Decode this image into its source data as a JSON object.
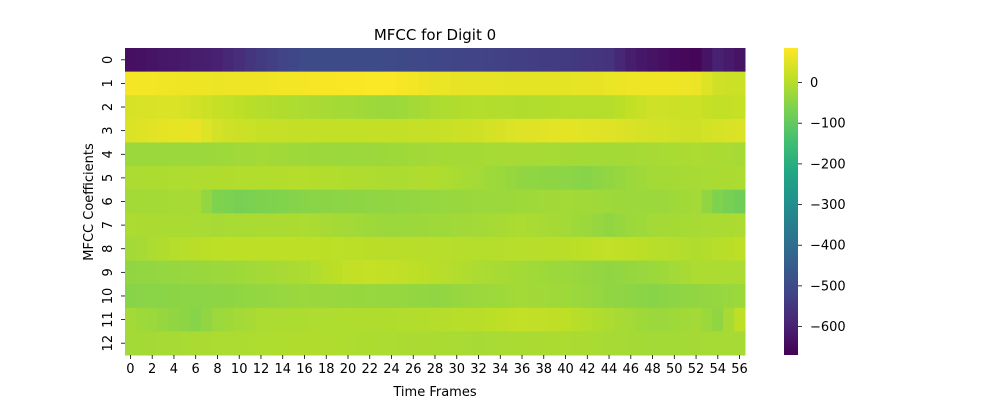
{
  "chart_data": {
    "type": "heatmap",
    "title": "MFCC for Digit 0",
    "xlabel": "Time Frames",
    "ylabel": "MFCC Coefficients",
    "n_frames": 57,
    "n_coeffs": 13,
    "x_tick_labels": [
      "0",
      "2",
      "4",
      "6",
      "8",
      "10",
      "12",
      "14",
      "16",
      "18",
      "20",
      "22",
      "24",
      "26",
      "28",
      "30",
      "32",
      "34",
      "36",
      "38",
      "40",
      "42",
      "44",
      "46",
      "48",
      "50",
      "52",
      "54",
      "56"
    ],
    "y_tick_labels": [
      "0",
      "1",
      "2",
      "3",
      "4",
      "5",
      "6",
      "7",
      "8",
      "9",
      "10",
      "11",
      "12"
    ],
    "colorbar": {
      "vmin": -670,
      "vmax": 85,
      "tick_values": [
        0,
        -100,
        -200,
        -300,
        -400,
        -500,
        -600
      ],
      "tick_labels": [
        "0",
        "−100",
        "−200",
        "−300",
        "−400",
        "−500",
        "−600"
      ]
    },
    "colormap": "viridis",
    "row_keypoints": [
      {
        "coeff": 0,
        "frames": [
          0,
          4,
          8,
          12,
          16,
          20,
          24,
          28,
          32,
          36,
          40,
          44,
          46,
          50,
          52,
          54,
          56
        ],
        "values": [
          -640,
          -620,
          -600,
          -540,
          -500,
          -500,
          -500,
          -510,
          -520,
          -530,
          -540,
          -560,
          -610,
          -650,
          -660,
          -600,
          -630
        ]
      },
      {
        "coeff": 1,
        "frames": [
          0,
          8,
          12,
          20,
          24,
          27,
          30,
          36,
          40,
          44,
          48,
          52,
          54,
          56
        ],
        "values": [
          75,
          65,
          70,
          80,
          82,
          68,
          60,
          55,
          55,
          62,
          70,
          65,
          30,
          25
        ]
      },
      {
        "coeff": 2,
        "frames": [
          0,
          4,
          8,
          12,
          16,
          20,
          24,
          28,
          32,
          36,
          40,
          44,
          48,
          52,
          54,
          56
        ],
        "values": [
          40,
          45,
          20,
          0,
          -10,
          -20,
          -30,
          -10,
          0,
          -5,
          0,
          0,
          30,
          25,
          15,
          20
        ]
      },
      {
        "coeff": 3,
        "frames": [
          0,
          3,
          6,
          8,
          12,
          20,
          28,
          32,
          36,
          40,
          44,
          48,
          52,
          56
        ],
        "values": [
          45,
          55,
          60,
          35,
          20,
          15,
          20,
          30,
          50,
          55,
          50,
          35,
          30,
          45
        ]
      },
      {
        "coeff": 4,
        "frames": [
          0,
          6,
          12,
          20,
          28,
          36,
          44,
          52,
          56
        ],
        "values": [
          -30,
          -30,
          -20,
          -30,
          -20,
          -15,
          -20,
          -10,
          -15
        ]
      },
      {
        "coeff": 5,
        "frames": [
          0,
          8,
          16,
          24,
          28,
          32,
          36,
          42,
          44,
          48,
          56
        ],
        "values": [
          -10,
          -5,
          0,
          -10,
          -5,
          -20,
          -40,
          -50,
          -40,
          -20,
          -10
        ]
      },
      {
        "coeff": 6,
        "frames": [
          0,
          6,
          8,
          10,
          16,
          24,
          32,
          40,
          48,
          52,
          54,
          56
        ],
        "values": [
          -20,
          -15,
          -60,
          -70,
          -50,
          -40,
          -30,
          -20,
          -30,
          -20,
          -60,
          -80
        ]
      },
      {
        "coeff": 7,
        "frames": [
          0,
          8,
          16,
          24,
          32,
          36,
          40,
          44,
          48,
          56
        ],
        "values": [
          -10,
          -15,
          -10,
          -30,
          -20,
          -10,
          -20,
          -40,
          -20,
          -10
        ]
      },
      {
        "coeff": 8,
        "frames": [
          0,
          4,
          8,
          16,
          24,
          32,
          40,
          44,
          48,
          52,
          56
        ],
        "values": [
          -20,
          0,
          10,
          10,
          5,
          0,
          5,
          15,
          5,
          -5,
          10
        ]
      },
      {
        "coeff": 9,
        "frames": [
          0,
          8,
          16,
          20,
          22,
          28,
          32,
          36,
          40,
          44,
          48,
          52,
          56
        ],
        "values": [
          -40,
          -30,
          -10,
          15,
          20,
          5,
          -10,
          -20,
          -30,
          -40,
          -30,
          -10,
          -10
        ]
      },
      {
        "coeff": 10,
        "frames": [
          0,
          8,
          16,
          24,
          28,
          32,
          36,
          40,
          44,
          48,
          52,
          56
        ],
        "values": [
          -50,
          -45,
          -30,
          -35,
          -40,
          -30,
          -20,
          -25,
          -40,
          -50,
          -40,
          -30
        ]
      },
      {
        "coeff": 11,
        "frames": [
          0,
          6,
          8,
          12,
          24,
          32,
          36,
          40,
          44,
          48,
          52,
          54,
          56
        ],
        "values": [
          -20,
          -50,
          -30,
          -10,
          -5,
          5,
          15,
          10,
          -10,
          -30,
          -20,
          -40,
          10
        ]
      },
      {
        "coeff": 12,
        "frames": [
          0,
          8,
          16,
          24,
          32,
          40,
          48,
          56
        ],
        "values": [
          -20,
          -10,
          -5,
          -10,
          -15,
          -10,
          -20,
          -15
        ]
      }
    ]
  }
}
